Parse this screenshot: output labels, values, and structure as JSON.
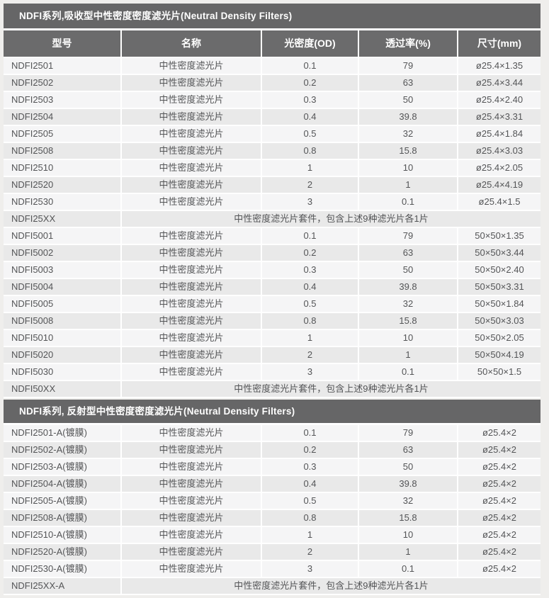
{
  "palette": {
    "page_bg": "#efeeec",
    "section_bar_bg": "#666667",
    "column_header_bg": "#6b6b6c",
    "header_text": "#ffffff",
    "row_light_bg": "#f5f5f6",
    "row_dark_bg": "#e9e9e9",
    "cell_text": "#545557",
    "separator": "#ffffff"
  },
  "table": {
    "columns": [
      "型号",
      "名称",
      "光密度(OD)",
      "透过率(%)",
      "尺寸(mm)"
    ],
    "kit_note": "中性密度滤光片套件，包含上述9种滤光片各1片",
    "sections": [
      {
        "title": "NDFI系列,吸收型中性密度密度滤光片(Neutral Density Filters)",
        "has_column_header": true,
        "rows": [
          {
            "model": "NDFI2501",
            "name": "中性密度滤光片",
            "od": "0.1",
            "transmission": "79",
            "size": "ø25.4×1.35"
          },
          {
            "model": "NDFI2502",
            "name": "中性密度滤光片",
            "od": "0.2",
            "transmission": "63",
            "size": "ø25.4×3.44"
          },
          {
            "model": "NDFI2503",
            "name": "中性密度滤光片",
            "od": "0.3",
            "transmission": "50",
            "size": "ø25.4×2.40"
          },
          {
            "model": "NDFI2504",
            "name": "中性密度滤光片",
            "od": "0.4",
            "transmission": "39.8",
            "size": "ø25.4×3.31"
          },
          {
            "model": "NDFI2505",
            "name": "中性密度滤光片",
            "od": "0.5",
            "transmission": "32",
            "size": "ø25.4×1.84"
          },
          {
            "model": "NDFI2508",
            "name": "中性密度滤光片",
            "od": "0.8",
            "transmission": "15.8",
            "size": "ø25.4×3.03"
          },
          {
            "model": "NDFI2510",
            "name": "中性密度滤光片",
            "od": "1",
            "transmission": "10",
            "size": "ø25.4×2.05"
          },
          {
            "model": "NDFI2520",
            "name": "中性密度滤光片",
            "od": "2",
            "transmission": "1",
            "size": "ø25.4×4.19"
          },
          {
            "model": "NDFI2530",
            "name": "中性密度滤光片",
            "od": "3",
            "transmission": "0.1",
            "size": "ø25.4×1.5"
          },
          {
            "model": "NDFI25XX",
            "kit": "中性密度滤光片套件，包含上述9种滤光片各1片"
          },
          {
            "model": "NDFI5001",
            "name": "中性密度滤光片",
            "od": "0.1",
            "transmission": "79",
            "size": "50×50×1.35"
          },
          {
            "model": "NDFI5002",
            "name": "中性密度滤光片",
            "od": "0.2",
            "transmission": "63",
            "size": "50×50×3.44"
          },
          {
            "model": "NDFI5003",
            "name": "中性密度滤光片",
            "od": "0.3",
            "transmission": "50",
            "size": "50×50×2.40"
          },
          {
            "model": "NDFI5004",
            "name": "中性密度滤光片",
            "od": "0.4",
            "transmission": "39.8",
            "size": "50×50×3.31"
          },
          {
            "model": "NDFI5005",
            "name": "中性密度滤光片",
            "od": "0.5",
            "transmission": "32",
            "size": "50×50×1.84"
          },
          {
            "model": "NDFI5008",
            "name": "中性密度滤光片",
            "od": "0.8",
            "transmission": "15.8",
            "size": "50×50×3.03"
          },
          {
            "model": "NDFI5010",
            "name": "中性密度滤光片",
            "od": "1",
            "transmission": "10",
            "size": "50×50×2.05"
          },
          {
            "model": "NDFI5020",
            "name": "中性密度滤光片",
            "od": "2",
            "transmission": "1",
            "size": "50×50×4.19"
          },
          {
            "model": "NDFI5030",
            "name": "中性密度滤光片",
            "od": "3",
            "transmission": "0.1",
            "size": "50×50×1.5"
          },
          {
            "model": "NDFI50XX",
            "kit": "中性密度滤光片套件，包含上述9种滤光片各1片"
          }
        ]
      },
      {
        "title": "NDFI系列, 反射型中性密度密度滤光片(Neutral Density Filters)",
        "has_column_header": false,
        "rows": [
          {
            "model": "NDFI2501-A(镀膜)",
            "name": "中性密度滤光片",
            "od": "0.1",
            "transmission": "79",
            "size": "ø25.4×2"
          },
          {
            "model": "NDFI2502-A(镀膜)",
            "name": "中性密度滤光片",
            "od": "0.2",
            "transmission": "63",
            "size": "ø25.4×2"
          },
          {
            "model": "NDFI2503-A(镀膜)",
            "name": "中性密度滤光片",
            "od": "0.3",
            "transmission": "50",
            "size": "ø25.4×2"
          },
          {
            "model": "NDFI2504-A(镀膜)",
            "name": "中性密度滤光片",
            "od": "0.4",
            "transmission": "39.8",
            "size": "ø25.4×2"
          },
          {
            "model": "NDFI2505-A(镀膜)",
            "name": "中性密度滤光片",
            "od": "0.5",
            "transmission": "32",
            "size": "ø25.4×2"
          },
          {
            "model": "NDFI2508-A(镀膜)",
            "name": "中性密度滤光片",
            "od": "0.8",
            "transmission": "15.8",
            "size": "ø25.4×2"
          },
          {
            "model": "NDFI2510-A(镀膜)",
            "name": "中性密度滤光片",
            "od": "1",
            "transmission": "10",
            "size": "ø25.4×2"
          },
          {
            "model": "NDFI2520-A(镀膜)",
            "name": "中性密度滤光片",
            "od": "2",
            "transmission": "1",
            "size": "ø25.4×2"
          },
          {
            "model": "NDFI2530-A(镀膜)",
            "name": "中性密度滤光片",
            "od": "3",
            "transmission": "0.1",
            "size": "ø25.4×2"
          },
          {
            "model": "NDFI25XX-A",
            "kit": "中性密度滤光片套件，包含上述9种滤光片各1片"
          }
        ]
      }
    ]
  }
}
